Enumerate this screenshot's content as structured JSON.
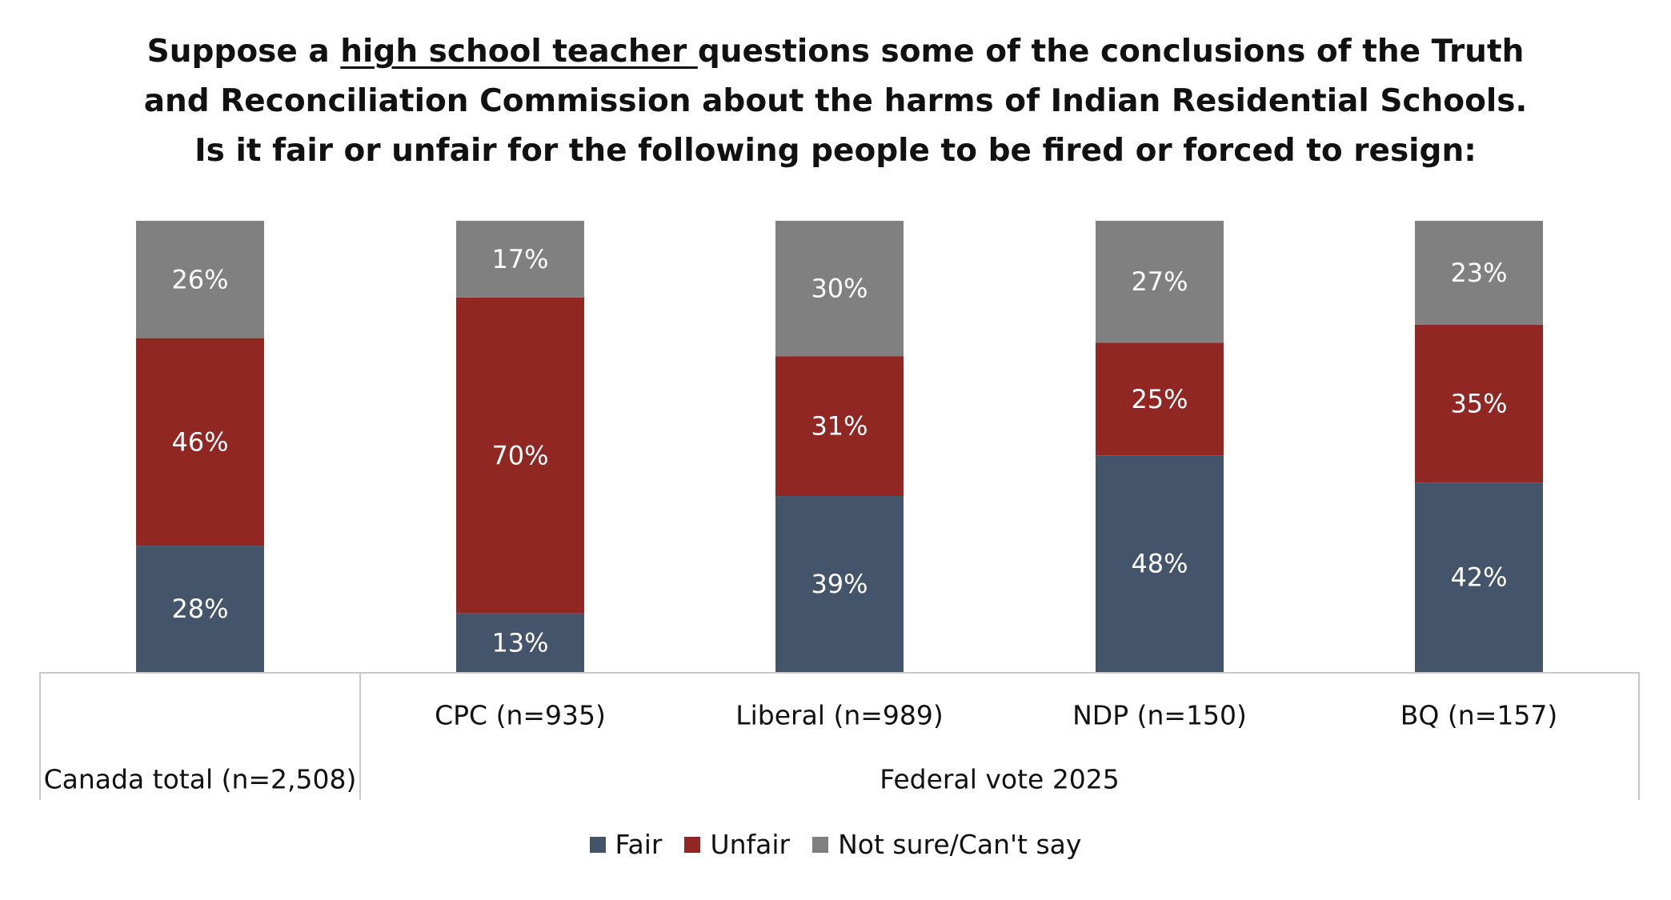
{
  "title": {
    "part1": "Suppose a ",
    "underlined": "high school teacher ",
    "part2": "questions some of the conclusions of the Truth",
    "line2": "and Reconciliation Commission about the harms of Indian Residential Schools.",
    "line3": "Is it fair or unfair for the following people to be fired or forced to resign:"
  },
  "colors": {
    "fair": "#44546A",
    "unfair": "#912723",
    "not_sure": "#808080",
    "axis": "#C8C8C8"
  },
  "chart_data": {
    "type": "bar",
    "stacked": "percent",
    "categories": [
      "",
      "CPC (n=935)",
      "Liberal (n=989)",
      "NDP (n=150)",
      "BQ (n=157)"
    ],
    "groups": [
      {
        "label": "Canada total (n=2,508)",
        "categories": [
          0
        ]
      },
      {
        "label": "Federal vote 2025",
        "categories": [
          1,
          2,
          3,
          4
        ]
      }
    ],
    "series": [
      {
        "name": "Fair",
        "values": [
          28,
          13,
          39,
          48,
          42
        ]
      },
      {
        "name": "Unfair",
        "values": [
          46,
          70,
          31,
          25,
          35
        ]
      },
      {
        "name": "Not sure/Can't say",
        "values": [
          26,
          17,
          30,
          27,
          23
        ]
      }
    ],
    "data_labels": [
      [
        "28%",
        "13%",
        "39%",
        "48%",
        "42%"
      ],
      [
        "46%",
        "70%",
        "31%",
        "25%",
        "35%"
      ],
      [
        "26%",
        "17%",
        "30%",
        "27%",
        "23%"
      ]
    ],
    "ylim": [
      0,
      100
    ],
    "grid": false,
    "legend_position": "bottom"
  }
}
